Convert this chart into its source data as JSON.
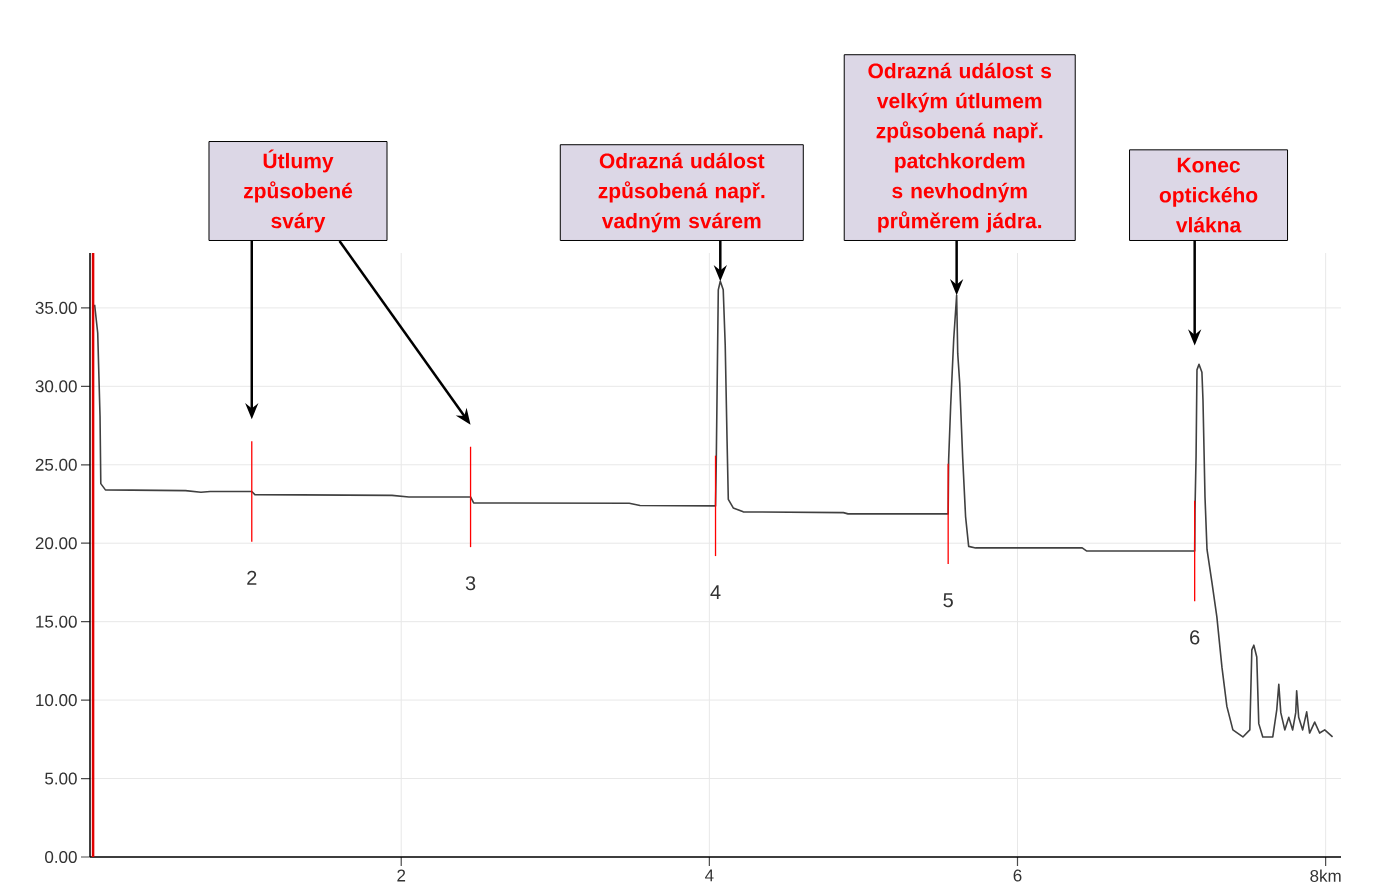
{
  "chart_data": {
    "type": "line",
    "x": [
      0.01,
      0.03,
      0.045,
      0.05,
      0.08,
      0.6,
      0.7,
      0.76,
      1.03,
      1.05,
      1.94,
      2.05,
      2.12,
      2.45,
      2.47,
      3.48,
      3.55,
      4.04,
      4.045,
      4.058,
      4.071,
      4.09,
      4.103,
      4.115,
      4.123,
      4.155,
      4.22,
      4.87,
      4.9,
      5.55,
      5.553,
      5.566,
      5.586,
      5.605,
      5.612,
      5.625,
      5.644,
      5.663,
      5.683,
      5.728,
      6.42,
      6.45,
      7.15,
      7.152,
      7.159,
      7.165,
      7.178,
      7.197,
      7.204,
      7.217,
      7.23,
      7.262,
      7.294,
      7.327,
      7.359,
      7.398,
      7.463,
      7.508,
      7.521,
      7.534,
      7.553,
      7.566,
      7.592,
      7.657,
      7.683,
      7.696,
      7.709,
      7.735,
      7.761,
      7.786,
      7.806,
      7.812,
      7.825,
      7.851,
      7.877,
      7.896,
      7.929,
      7.961,
      7.994,
      8.045
    ],
    "series": [
      {
        "color": "#404040",
        "values": [
          35.2,
          33.4,
          28.1,
          23.8,
          23.4,
          23.35,
          23.25,
          23.3,
          23.3,
          23.1,
          23.05,
          22.95,
          22.95,
          22.95,
          22.57,
          22.55,
          22.4,
          22.38,
          25.3,
          36.15,
          36.7,
          36.15,
          32.6,
          26.5,
          22.8,
          22.25,
          22.0,
          21.95,
          21.87,
          21.87,
          25.3,
          28.7,
          33.0,
          35.8,
          32.1,
          30.2,
          25.5,
          21.7,
          19.8,
          19.7,
          19.7,
          19.5,
          19.5,
          22.1,
          25.5,
          31.05,
          31.4,
          30.9,
          29.1,
          22.95,
          19.6,
          17.5,
          15.3,
          12.1,
          9.6,
          8.1,
          7.65,
          8.1,
          13.2,
          13.5,
          12.75,
          8.5,
          7.65,
          7.65,
          9.4,
          11.0,
          9.2,
          8.1,
          8.9,
          8.1,
          9.2,
          10.6,
          8.9,
          8.1,
          9.25,
          7.9,
          8.6,
          7.9,
          8.1,
          7.65
        ]
      }
    ],
    "xlim": [
      -0.02,
      8.1
    ],
    "ylim": [
      0,
      38.5
    ],
    "xticks": [
      2,
      4,
      6,
      {
        "value": 8,
        "label": "8km"
      }
    ],
    "yticks": [
      {
        "value": 0,
        "label": "0.00"
      },
      {
        "value": 5,
        "label": "5.00"
      },
      {
        "value": 10,
        "label": "10.00"
      },
      {
        "value": 15,
        "label": "15.00"
      },
      {
        "value": 20,
        "label": "20.00"
      },
      {
        "value": 25,
        "label": "25.00"
      },
      {
        "value": 30,
        "label": "30.00"
      },
      {
        "value": 35,
        "label": "35.00"
      }
    ],
    "grid": true,
    "ref_lines": [
      {
        "axis": "x",
        "value": 1.03,
        "color": "#ff0000"
      },
      {
        "axis": "x",
        "value": 2.45,
        "color": "#ff0000"
      },
      {
        "axis": "x",
        "value": 4.04,
        "color": "#ff0000"
      },
      {
        "axis": "x",
        "value": 5.55,
        "color": "#ff0000"
      },
      {
        "axis": "x",
        "value": 7.15,
        "color": "#ff0000"
      },
      {
        "axis": "x",
        "value": 0,
        "color": "#e00000"
      }
    ],
    "annotations": [
      "Útlumy způsobené sváry",
      {
        "text": "Odrazná událost způsobená např. vadným svárem",
        "x": 4.071,
        "y": 36.7
      },
      {
        "text": "Odrazná událost s velkým útlumem způsobená např. patchkordem s nevhodným průměrem jádra.",
        "x": 5.605,
        "y": 35.8
      },
      "Konec optického vlákna",
      "2",
      "3",
      "4",
      "5",
      "6"
    ]
  }
}
